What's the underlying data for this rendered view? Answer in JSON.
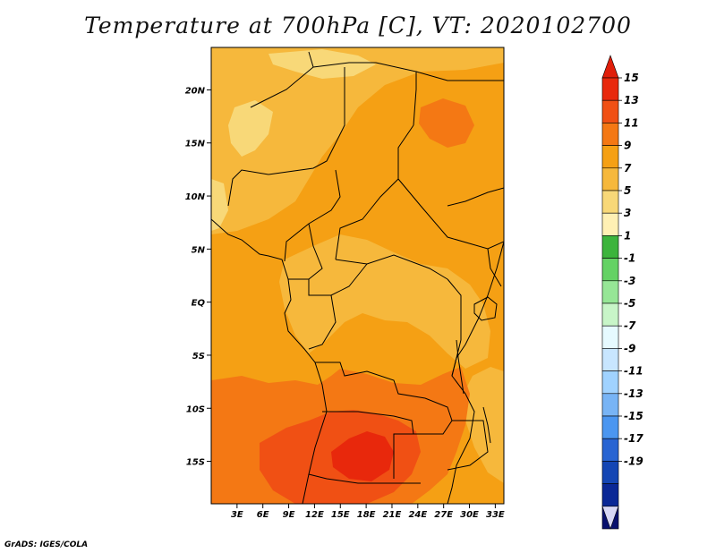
{
  "title": "Temperature at 700hPa [C], VT: 2020102700",
  "credit": "GrADS: IGES/COLA",
  "map": {
    "lat_range": [
      -19,
      24
    ],
    "lon_range": [
      0,
      34
    ],
    "lat_ticks": [
      {
        "value": 20,
        "label": "20N"
      },
      {
        "value": 15,
        "label": "15N"
      },
      {
        "value": 10,
        "label": "10N"
      },
      {
        "value": 5,
        "label": "5N"
      },
      {
        "value": 0,
        "label": "EQ"
      },
      {
        "value": -5,
        "label": "5S"
      },
      {
        "value": -10,
        "label": "10S"
      },
      {
        "value": -15,
        "label": "15S"
      }
    ],
    "lon_ticks": [
      {
        "value": 3,
        "label": "3E"
      },
      {
        "value": 6,
        "label": "6E"
      },
      {
        "value": 9,
        "label": "9E"
      },
      {
        "value": 12,
        "label": "12E"
      },
      {
        "value": 15,
        "label": "15E"
      },
      {
        "value": 18,
        "label": "18E"
      },
      {
        "value": 21,
        "label": "21E"
      },
      {
        "value": 24,
        "label": "24E"
      },
      {
        "value": 27,
        "label": "27E"
      },
      {
        "value": 30,
        "label": "30E"
      },
      {
        "value": 33,
        "label": "33E"
      }
    ]
  },
  "colorbar": {
    "labels": [
      "15",
      "13",
      "11",
      "9",
      "7",
      "5",
      "3",
      "1",
      "-1",
      "-3",
      "-5",
      "-7",
      "-9",
      "-11",
      "-13",
      "-15",
      "-17",
      "-19"
    ],
    "colors": [
      "#e8280c",
      "#f05014",
      "#f47814",
      "#f5a014",
      "#f6b83c",
      "#f8d878",
      "#fff0b4",
      "#3cb43c",
      "#64d264",
      "#96e696",
      "#c8f5c8",
      "#e6faff",
      "#c8e6ff",
      "#a0d2ff",
      "#78b4f5",
      "#4b96f0",
      "#2864d2",
      "#1446b4",
      "#0a2896",
      "#08106e"
    ],
    "top_arrow_color": "#e01e0a",
    "bottom_arrow_color": "#d7d7f5"
  }
}
